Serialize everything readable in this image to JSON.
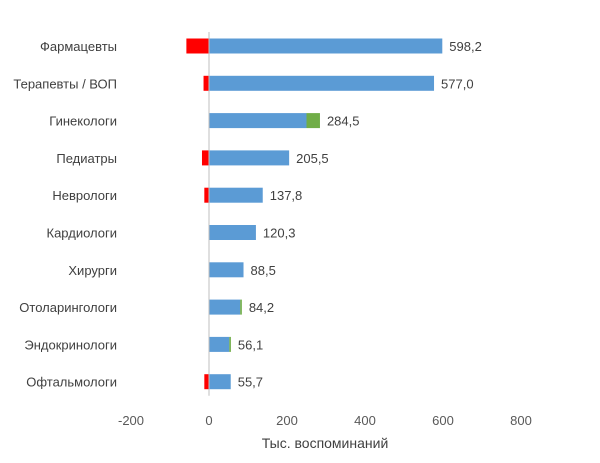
{
  "chart_data": {
    "type": "bar",
    "orientation": "horizontal",
    "stacked": true,
    "categories": [
      "Фармацевты",
      "Терапевты / ВОП",
      "Гинекологи",
      "Педиатры",
      "Неврологи",
      "Кардиологи",
      "Хирурги",
      "Отоларингологи",
      "Эндокринологи",
      "Офтальмологи"
    ],
    "series": [
      {
        "color": "#5b9bd5",
        "values": [
          598.2,
          577.0,
          250,
          205.5,
          137.8,
          120.3,
          88.5,
          80,
          52,
          55.7
        ]
      },
      {
        "color": "#70ad47",
        "values": [
          0,
          0,
          34.5,
          0,
          0,
          0,
          0,
          4.2,
          4.1,
          0
        ]
      },
      {
        "color": "#ff0000",
        "values": [
          -58,
          -14,
          0,
          -18,
          -12,
          0,
          0,
          0,
          0,
          -12
        ]
      }
    ],
    "data_labels": [
      "598,2",
      "577,0",
      "284,5",
      "205,5",
      "137,8",
      "120,3",
      "88,5",
      "84,2",
      "56,1",
      "55,7"
    ],
    "label_values": [
      598.2,
      577.0,
      284.5,
      205.5,
      137.8,
      120.3,
      88.5,
      84.2,
      56.1,
      55.7
    ],
    "xlim": [
      -200,
      800
    ],
    "xticks": [
      -200,
      0,
      200,
      400,
      600,
      800
    ],
    "xtick_labels": [
      "-200",
      "0",
      "200",
      "400",
      "600",
      "800"
    ],
    "xlabel": "Тыс. воспоминаний",
    "ylabel": "",
    "title": "",
    "grid": false,
    "legend": "none"
  }
}
